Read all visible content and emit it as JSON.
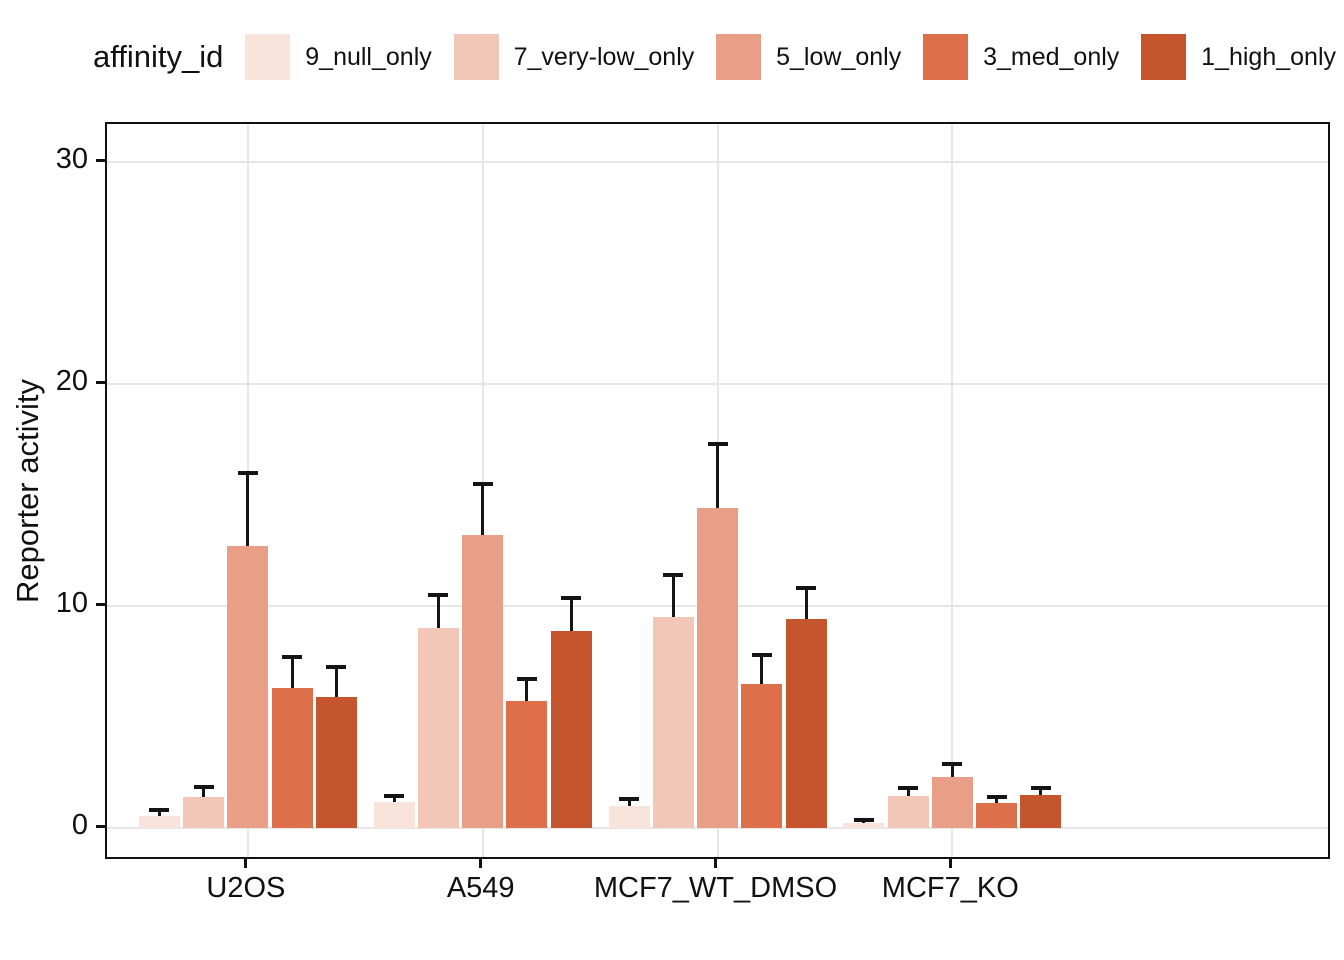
{
  "chart_data": {
    "type": "bar",
    "subtype": "grouped-bar-with-error-bars",
    "legend_title": "affinity_id",
    "legend_position": "top",
    "ylabel": "Reporter activity",
    "xlabel": "",
    "categories": [
      "U2OS",
      "A549",
      "MCF7_WT_DMSO",
      "MCF7_KO"
    ],
    "y_ticks": [
      0,
      10,
      20,
      30
    ],
    "ylim_visible": [
      -1.31,
      31.7
    ],
    "grid": "major-only-light-gray",
    "colors": {
      "grid": "#e7e7e7",
      "panel_border": "#111111",
      "error_bar": "#141414",
      "text": "#111111"
    },
    "series": [
      {
        "name": "9_null_only",
        "color": "#F8E4DB",
        "values": [
          0.55,
          1.15,
          1.0,
          0.2
        ],
        "errors_high": [
          0.8,
          1.45,
          1.3,
          0.35
        ]
      },
      {
        "name": "7_very-low_only",
        "color": "#F3C7B8",
        "values": [
          1.4,
          9.0,
          9.5,
          1.45
        ],
        "errors_high": [
          1.85,
          10.5,
          11.4,
          1.8
        ]
      },
      {
        "name": "5_low_only",
        "color": "#E89E87",
        "values": [
          12.7,
          13.2,
          14.4,
          2.3
        ],
        "errors_high": [
          16.0,
          15.5,
          17.3,
          2.9
        ]
      },
      {
        "name": "3_med_only",
        "color": "#DD6F4B",
        "values": [
          6.3,
          5.7,
          6.5,
          1.1
        ],
        "errors_high": [
          7.7,
          6.7,
          7.8,
          1.4
        ]
      },
      {
        "name": "1_high_only",
        "color": "#C5552D",
        "values": [
          5.9,
          8.85,
          9.4,
          1.5
        ],
        "errors_high": [
          7.25,
          10.35,
          10.8,
          1.8
        ]
      }
    ]
  }
}
